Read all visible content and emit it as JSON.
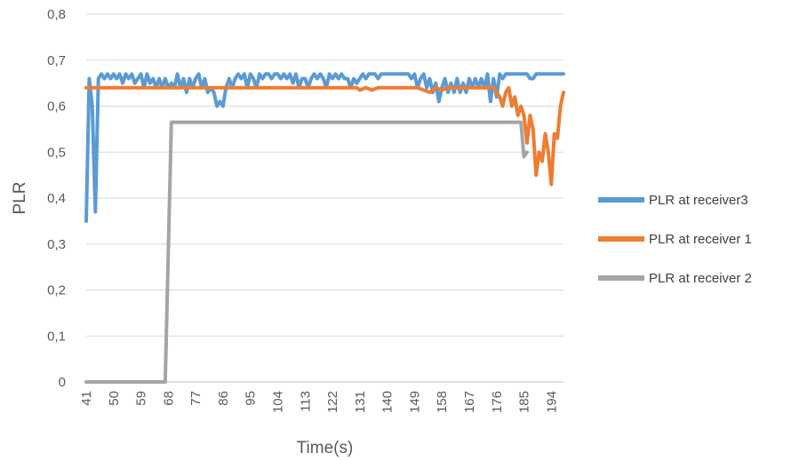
{
  "chart_data": {
    "type": "line",
    "title": "",
    "xlabel": "Time(s)",
    "ylabel": "PLR",
    "xlim": [
      41,
      198
    ],
    "ylim": [
      0,
      0.8
    ],
    "y_ticks": [
      "0",
      "0,1",
      "0,2",
      "0,3",
      "0,4",
      "0,5",
      "0,6",
      "0,7",
      "0,8"
    ],
    "y_tick_values": [
      0,
      0.1,
      0.2,
      0.3,
      0.4,
      0.5,
      0.6,
      0.7,
      0.8
    ],
    "x_ticks": [
      "41",
      "50",
      "59",
      "68",
      "77",
      "86",
      "95",
      "104",
      "113",
      "122",
      "131",
      "140",
      "149",
      "158",
      "167",
      "176",
      "185",
      "194"
    ],
    "x_tick_values": [
      41,
      50,
      59,
      68,
      77,
      86,
      95,
      104,
      113,
      122,
      131,
      140,
      149,
      158,
      167,
      176,
      185,
      194
    ],
    "grid": "horizontal",
    "legend_position": "right",
    "series": [
      {
        "name": "PLR at receiver3",
        "color": "#5B9BD5",
        "points": [
          [
            41,
            0.35
          ],
          [
            42,
            0.66
          ],
          [
            43,
            0.6
          ],
          [
            44,
            0.37
          ],
          [
            45,
            0.66
          ],
          [
            46,
            0.67
          ],
          [
            47,
            0.66
          ],
          [
            48,
            0.67
          ],
          [
            49,
            0.66
          ],
          [
            50,
            0.67
          ],
          [
            51,
            0.66
          ],
          [
            52,
            0.67
          ],
          [
            53,
            0.65
          ],
          [
            54,
            0.67
          ],
          [
            55,
            0.66
          ],
          [
            56,
            0.67
          ],
          [
            57,
            0.65
          ],
          [
            58,
            0.66
          ],
          [
            59,
            0.67
          ],
          [
            60,
            0.64
          ],
          [
            61,
            0.67
          ],
          [
            62,
            0.65
          ],
          [
            63,
            0.66
          ],
          [
            64,
            0.64
          ],
          [
            65,
            0.66
          ],
          [
            66,
            0.64
          ],
          [
            67,
            0.66
          ],
          [
            68,
            0.64
          ],
          [
            69,
            0.65
          ],
          [
            70,
            0.64
          ],
          [
            71,
            0.67
          ],
          [
            72,
            0.64
          ],
          [
            73,
            0.66
          ],
          [
            74,
            0.63
          ],
          [
            75,
            0.66
          ],
          [
            76,
            0.64
          ],
          [
            77,
            0.66
          ],
          [
            78,
            0.67
          ],
          [
            79,
            0.64
          ],
          [
            80,
            0.66
          ],
          [
            81,
            0.63
          ],
          [
            82,
            0.64
          ],
          [
            83,
            0.63
          ],
          [
            84,
            0.6
          ],
          [
            85,
            0.61
          ],
          [
            86,
            0.6
          ],
          [
            87,
            0.64
          ],
          [
            88,
            0.66
          ],
          [
            89,
            0.64
          ],
          [
            90,
            0.66
          ],
          [
            91,
            0.67
          ],
          [
            92,
            0.66
          ],
          [
            93,
            0.67
          ],
          [
            94,
            0.64
          ],
          [
            95,
            0.67
          ],
          [
            96,
            0.66
          ],
          [
            97,
            0.64
          ],
          [
            98,
            0.67
          ],
          [
            99,
            0.66
          ],
          [
            100,
            0.67
          ],
          [
            101,
            0.67
          ],
          [
            102,
            0.66
          ],
          [
            103,
            0.67
          ],
          [
            104,
            0.67
          ],
          [
            105,
            0.66
          ],
          [
            106,
            0.67
          ],
          [
            107,
            0.66
          ],
          [
            108,
            0.67
          ],
          [
            109,
            0.65
          ],
          [
            110,
            0.67
          ],
          [
            111,
            0.64
          ],
          [
            112,
            0.66
          ],
          [
            113,
            0.66
          ],
          [
            114,
            0.64
          ],
          [
            115,
            0.66
          ],
          [
            116,
            0.67
          ],
          [
            117,
            0.66
          ],
          [
            118,
            0.67
          ],
          [
            119,
            0.66
          ],
          [
            120,
            0.64
          ],
          [
            121,
            0.67
          ],
          [
            122,
            0.66
          ],
          [
            123,
            0.67
          ],
          [
            124,
            0.66
          ],
          [
            125,
            0.67
          ],
          [
            126,
            0.66
          ],
          [
            127,
            0.66
          ],
          [
            128,
            0.64
          ],
          [
            129,
            0.66
          ],
          [
            130,
            0.65
          ],
          [
            131,
            0.66
          ],
          [
            132,
            0.67
          ],
          [
            133,
            0.66
          ],
          [
            134,
            0.67
          ],
          [
            135,
            0.67
          ],
          [
            136,
            0.67
          ],
          [
            137,
            0.66
          ],
          [
            138,
            0.67
          ],
          [
            139,
            0.67
          ],
          [
            140,
            0.67
          ],
          [
            141,
            0.67
          ],
          [
            142,
            0.67
          ],
          [
            143,
            0.67
          ],
          [
            144,
            0.67
          ],
          [
            145,
            0.67
          ],
          [
            146,
            0.67
          ],
          [
            147,
            0.67
          ],
          [
            148,
            0.66
          ],
          [
            149,
            0.67
          ],
          [
            150,
            0.64
          ],
          [
            151,
            0.66
          ],
          [
            152,
            0.67
          ],
          [
            153,
            0.64
          ],
          [
            154,
            0.66
          ],
          [
            155,
            0.63
          ],
          [
            156,
            0.65
          ],
          [
            157,
            0.61
          ],
          [
            158,
            0.64
          ],
          [
            159,
            0.66
          ],
          [
            160,
            0.63
          ],
          [
            161,
            0.65
          ],
          [
            162,
            0.63
          ],
          [
            163,
            0.66
          ],
          [
            164,
            0.63
          ],
          [
            165,
            0.65
          ],
          [
            166,
            0.63
          ],
          [
            167,
            0.66
          ],
          [
            168,
            0.64
          ],
          [
            169,
            0.66
          ],
          [
            170,
            0.64
          ],
          [
            171,
            0.66
          ],
          [
            172,
            0.64
          ],
          [
            173,
            0.67
          ],
          [
            174,
            0.61
          ],
          [
            175,
            0.66
          ],
          [
            176,
            0.62
          ],
          [
            177,
            0.67
          ],
          [
            178,
            0.66
          ],
          [
            179,
            0.67
          ],
          [
            180,
            0.67
          ],
          [
            181,
            0.67
          ],
          [
            182,
            0.67
          ],
          [
            183,
            0.67
          ],
          [
            184,
            0.67
          ],
          [
            185,
            0.67
          ],
          [
            186,
            0.67
          ],
          [
            187,
            0.66
          ],
          [
            188,
            0.66
          ],
          [
            189,
            0.67
          ],
          [
            190,
            0.67
          ],
          [
            191,
            0.67
          ],
          [
            192,
            0.67
          ],
          [
            193,
            0.67
          ],
          [
            194,
            0.67
          ],
          [
            195,
            0.67
          ],
          [
            196,
            0.67
          ],
          [
            197,
            0.67
          ],
          [
            198,
            0.67
          ]
        ]
      },
      {
        "name": "PLR at receiver 1",
        "color": "#ED7D31",
        "points": [
          [
            41,
            0.64
          ],
          [
            60,
            0.64
          ],
          [
            80,
            0.64
          ],
          [
            100,
            0.64
          ],
          [
            120,
            0.64
          ],
          [
            130,
            0.64
          ],
          [
            131,
            0.635
          ],
          [
            133,
            0.64
          ],
          [
            135,
            0.635
          ],
          [
            137,
            0.64
          ],
          [
            140,
            0.64
          ],
          [
            145,
            0.64
          ],
          [
            150,
            0.64
          ],
          [
            152,
            0.635
          ],
          [
            154,
            0.63
          ],
          [
            156,
            0.64
          ],
          [
            158,
            0.635
          ],
          [
            160,
            0.64
          ],
          [
            165,
            0.64
          ],
          [
            170,
            0.64
          ],
          [
            175,
            0.64
          ],
          [
            176,
            0.63
          ],
          [
            177,
            0.62
          ],
          [
            178,
            0.6
          ],
          [
            179,
            0.63
          ],
          [
            180,
            0.64
          ],
          [
            181,
            0.6
          ],
          [
            182,
            0.62
          ],
          [
            183,
            0.58
          ],
          [
            184,
            0.6
          ],
          [
            185,
            0.58
          ],
          [
            186,
            0.52
          ],
          [
            187,
            0.58
          ],
          [
            188,
            0.55
          ],
          [
            189,
            0.45
          ],
          [
            190,
            0.5
          ],
          [
            191,
            0.48
          ],
          [
            192,
            0.54
          ],
          [
            193,
            0.5
          ],
          [
            194,
            0.43
          ],
          [
            195,
            0.54
          ],
          [
            196,
            0.53
          ],
          [
            197,
            0.6
          ],
          [
            198,
            0.63
          ]
        ]
      },
      {
        "name": "PLR at receiver 2",
        "color": "#A5A5A5",
        "points": [
          [
            41,
            0
          ],
          [
            67,
            0
          ],
          [
            69,
            0.565
          ],
          [
            184,
            0.565
          ],
          [
            185,
            0.49
          ],
          [
            186,
            0.5
          ]
        ]
      }
    ]
  }
}
